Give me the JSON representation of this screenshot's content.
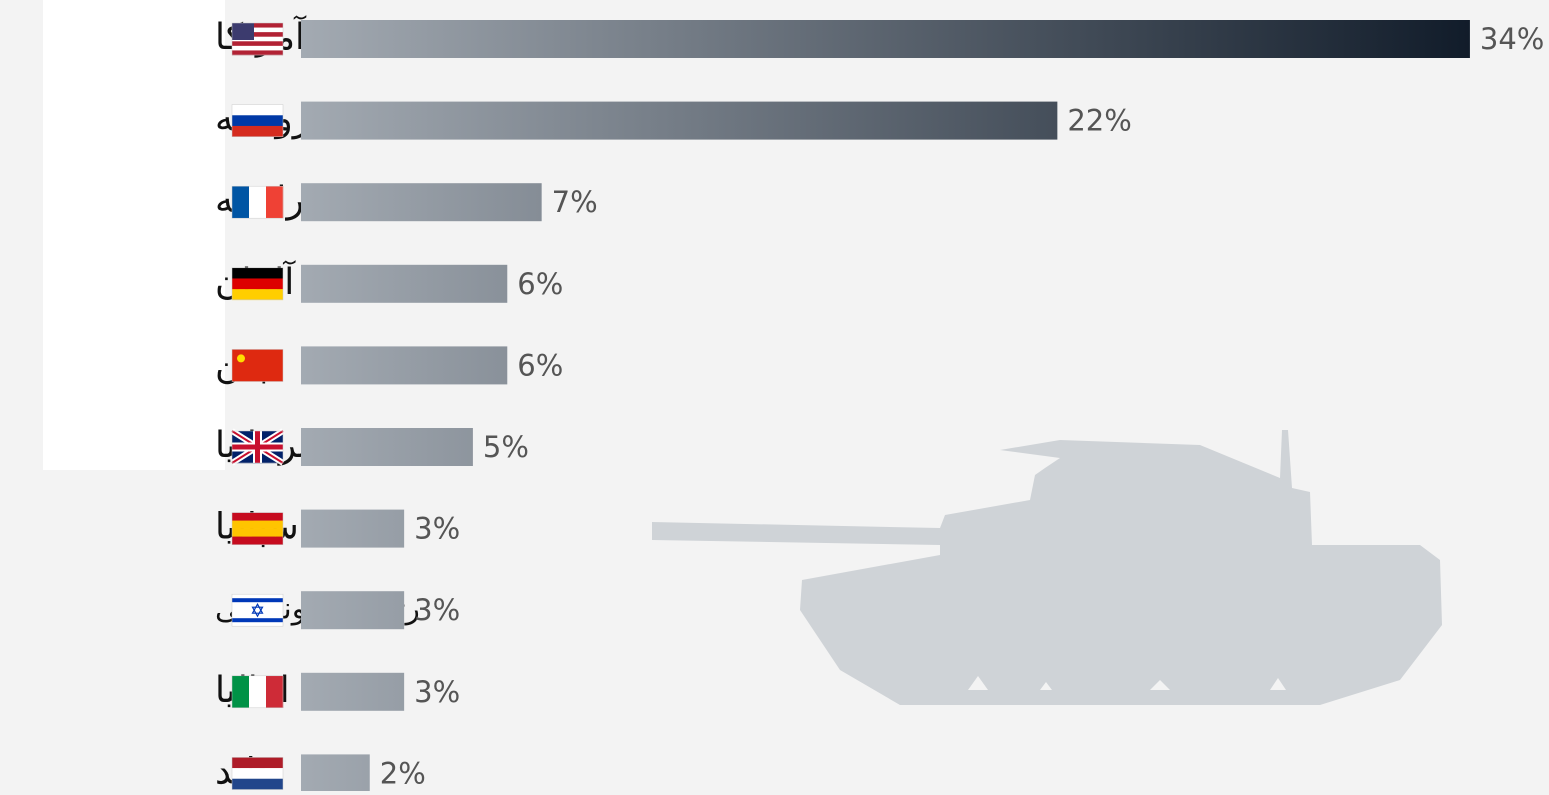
{
  "chart_data": {
    "type": "bar",
    "orientation": "horizontal",
    "categories": [
      "آمریکا",
      "روسیه",
      "فرانسه",
      "آلمان",
      "چین",
      "بریتانیا",
      "اسپانیا",
      "رژیم صهیونیستی",
      "ایتالیا",
      "هلند"
    ],
    "values": [
      34,
      22,
      7,
      6,
      6,
      5,
      3,
      3,
      3,
      2
    ],
    "value_labels": [
      "34%",
      "22%",
      "7%",
      "6%",
      "6%",
      "5%",
      "3%",
      "3%",
      "3%",
      "2%"
    ],
    "gradient": [
      "#a3aab2",
      "#111c2a"
    ]
  }
}
